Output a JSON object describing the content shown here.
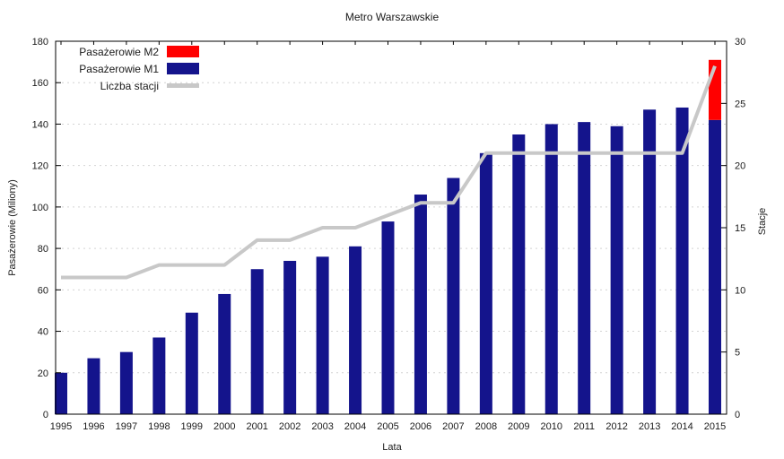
{
  "chart": {
    "title": "Metro Warszawskie"
  },
  "legend": {
    "items": [
      {
        "label": "Pasażerowie M2",
        "swatch": "rect",
        "color": "#ff0000"
      },
      {
        "label": "Pasażerowie M1",
        "swatch": "rect",
        "color": "#14148c"
      },
      {
        "label": "Liczba stacji",
        "swatch": "line",
        "color": "#c8c8c8"
      }
    ]
  },
  "chart_data": {
    "type": "bar",
    "title": "Metro Warszawskie",
    "categories": [
      1995,
      1996,
      1997,
      1998,
      1999,
      2000,
      2001,
      2002,
      2003,
      2004,
      2005,
      2006,
      2007,
      2008,
      2009,
      2010,
      2011,
      2012,
      2013,
      2014,
      2015
    ],
    "series": [
      {
        "name": "Pasażerowie M2",
        "type": "bar",
        "axis": "left",
        "stacked_on": "Pasażerowie M1",
        "color": "#ff0000",
        "values": [
          0,
          0,
          0,
          0,
          0,
          0,
          0,
          0,
          0,
          0,
          0,
          0,
          0,
          0,
          0,
          0,
          0,
          0,
          0,
          0,
          29
        ]
      },
      {
        "name": "Pasażerowie M1",
        "type": "bar",
        "axis": "left",
        "color": "#14148c",
        "values": [
          20,
          27,
          30,
          37,
          49,
          58,
          70,
          74,
          76,
          81,
          93,
          106,
          114,
          126,
          135,
          140,
          141,
          139,
          147,
          148,
          142
        ]
      },
      {
        "name": "Liczba stacji",
        "type": "line",
        "axis": "right",
        "color": "#c8c8c8",
        "values": [
          11,
          11,
          11,
          12,
          12,
          12,
          14,
          14,
          15,
          15,
          16,
          17,
          17,
          21,
          21,
          21,
          21,
          21,
          21,
          21,
          28
        ]
      }
    ],
    "axes": {
      "x": {
        "label": "Lata"
      },
      "left": {
        "label": "Pasażerowie (Miliony)",
        "min": 0,
        "max": 180,
        "tick_step": 20
      },
      "right": {
        "label": "Stacje",
        "min": 0,
        "max": 30,
        "tick_step": 5
      }
    },
    "grid": true,
    "grid_color": "#d4d4d4",
    "frame_color": "#000000",
    "text_color": "#1a1a1a",
    "legend_position": "top-left"
  }
}
